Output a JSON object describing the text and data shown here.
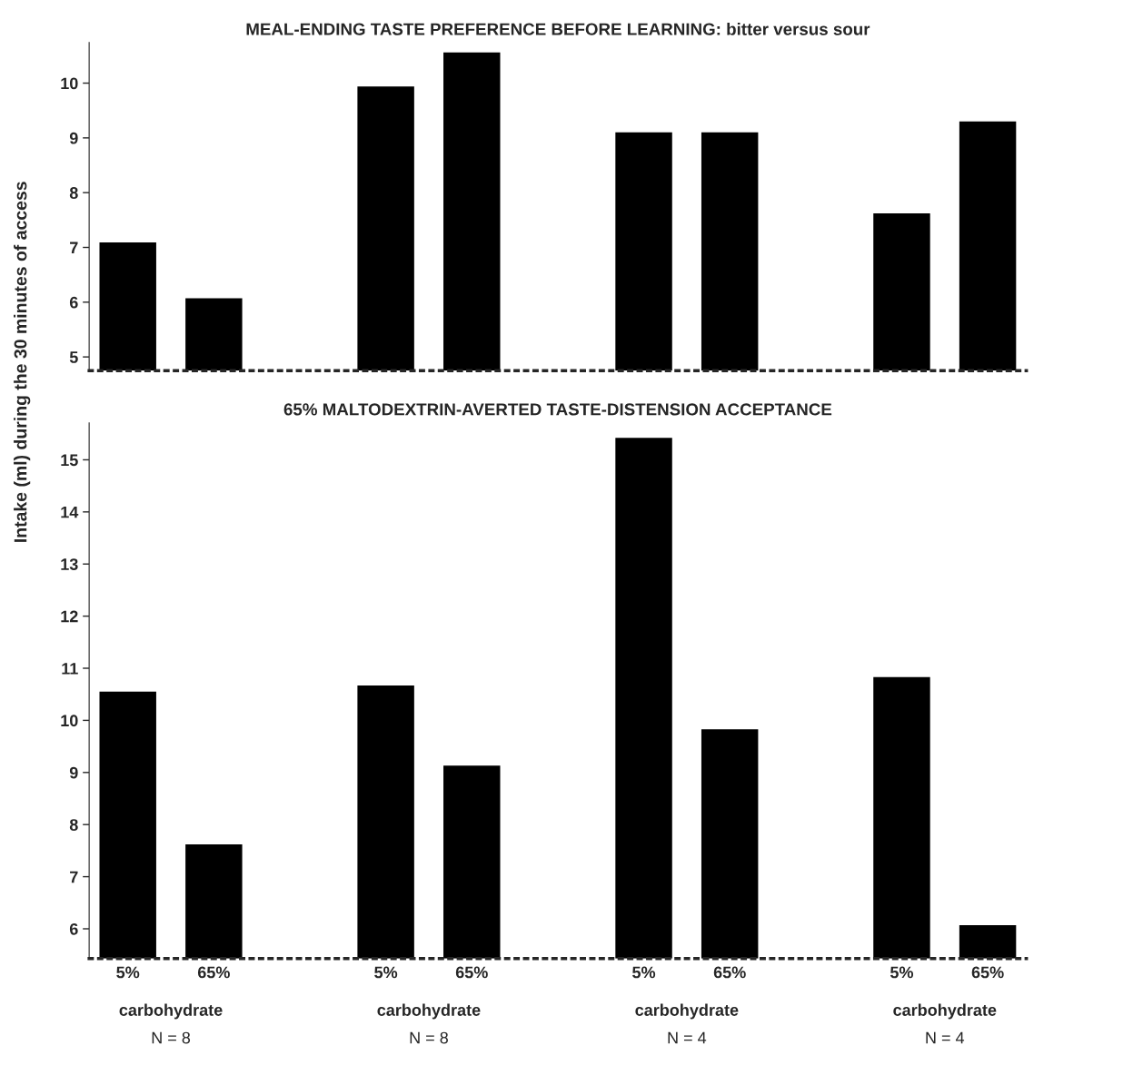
{
  "chart_data": [
    {
      "type": "bar",
      "title": "MEAL-ENDING TASTE PREFERENCE BEFORE LEARNING: bitter versus sour",
      "ylabel": "Intake (ml) during the 30 minutes of access",
      "categories": [
        null,
        null,
        null,
        null,
        null,
        null,
        null,
        null,
        null,
        null,
        null
      ],
      "values": [
        7.09,
        6.07,
        null,
        9.94,
        10.56,
        null,
        9.1,
        9.1,
        null,
        7.62,
        9.3
      ],
      "color": "#000000",
      "ylim": [
        4.75,
        10.74
      ],
      "yticks": [
        5,
        6,
        7,
        8,
        9,
        10
      ],
      "tick_labels": "y",
      "grid": false,
      "legend": false
    },
    {
      "type": "bar",
      "title": "65% MALTODEXTRIN-AVERTED TASTE-DISTENSION ACCEPTANCE",
      "categories": [
        "5%",
        "65%",
        null,
        "5%",
        "65%",
        null,
        "5%",
        "65%",
        null,
        "5%",
        "65%"
      ],
      "values": [
        10.55,
        7.62,
        null,
        10.67,
        9.13,
        null,
        15.42,
        9.83,
        null,
        10.83,
        6.07
      ],
      "color": "#000000",
      "ylim": [
        5.43,
        15.71
      ],
      "yticks": [
        6,
        7,
        8,
        9,
        10,
        11,
        12,
        13,
        14,
        15
      ],
      "grid": false,
      "legend": false,
      "annotations": [
        "carbohydrate",
        "N = 8",
        "carbohydrate",
        "N = 8",
        "carbohydrate",
        "N = 4",
        "carbohydrate",
        "N = 4"
      ]
    }
  ]
}
